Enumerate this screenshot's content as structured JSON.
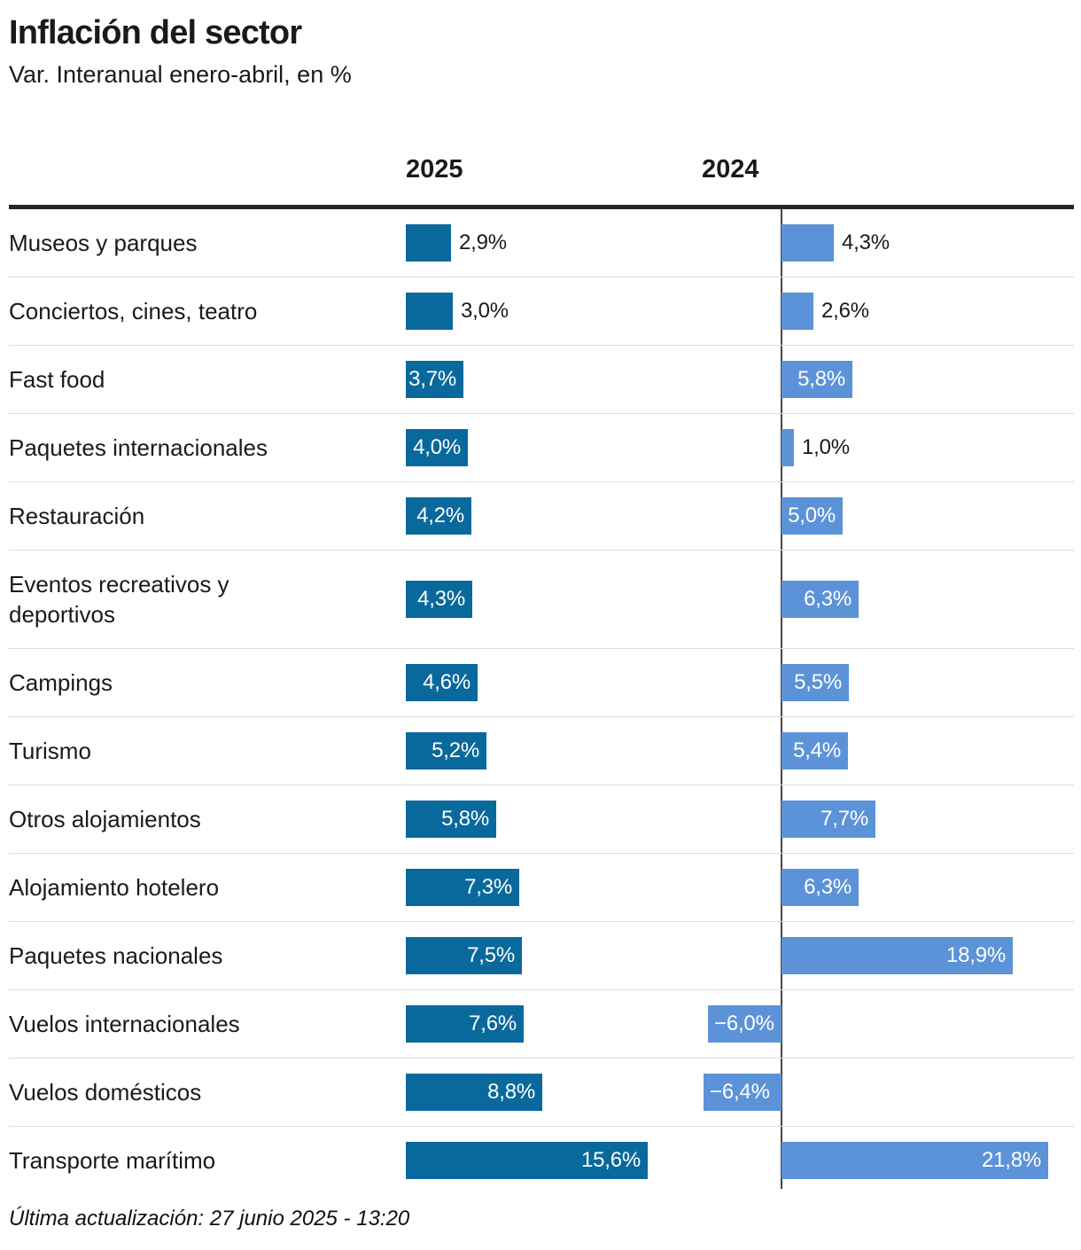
{
  "header": {
    "title": "Inflación del sector",
    "subtitle": "Var. Interanual enero-abril, en %"
  },
  "chart_data": {
    "type": "bar",
    "orientation": "horizontal",
    "unit": "%",
    "decimal_separator": ",",
    "zero_axis_line_2024": true,
    "grid": "row-separators",
    "columns": [
      {
        "key": "y2025",
        "label": "2025"
      },
      {
        "key": "y2024",
        "label": "2024"
      }
    ],
    "colors": {
      "bar_2025": "#0a699c",
      "bar_2024": "#5c93d8",
      "label_inside": "#ffffff",
      "label_outside": "#1a1a1a"
    },
    "categories": [
      "Museos y parques",
      "Conciertos, cines, teatro",
      "Fast food",
      "Paquetes internacionales",
      "Restauración",
      "Eventos recreativos y\ndeportivos",
      "Campings",
      "Turismo",
      "Otros alojamientos",
      "Alojamiento hotelero",
      "Paquetes nacionales",
      "Vuelos internacionales",
      "Vuelos domésticos",
      "Transporte marítimo"
    ],
    "series": [
      {
        "name": "2025",
        "values": [
          2.9,
          3.0,
          3.7,
          4.0,
          4.2,
          4.3,
          4.6,
          5.2,
          5.8,
          7.3,
          7.5,
          7.6,
          8.8,
          15.6
        ],
        "labels": [
          "2,9%",
          "3,0%",
          "3,7%",
          "4,0%",
          "4,2%",
          "4,3%",
          "4,6%",
          "5,2%",
          "5,8%",
          "7,3%",
          "7,5%",
          "7,6%",
          "8,8%",
          "15,6%"
        ]
      },
      {
        "name": "2024",
        "values": [
          4.3,
          2.6,
          5.8,
          1.0,
          5.0,
          6.3,
          5.5,
          5.4,
          7.7,
          6.3,
          18.9,
          -6.0,
          -6.4,
          21.8
        ],
        "labels": [
          "4,3%",
          "2,6%",
          "5,8%",
          "1,0%",
          "5,0%",
          "6,3%",
          "5,5%",
          "5,4%",
          "7,7%",
          "6,3%",
          "18,9%",
          "−6,0%",
          "−6,4%",
          "21,8%"
        ]
      }
    ]
  },
  "footer": {
    "updated": "Última actualización: 27 junio 2025 - 13:20"
  }
}
